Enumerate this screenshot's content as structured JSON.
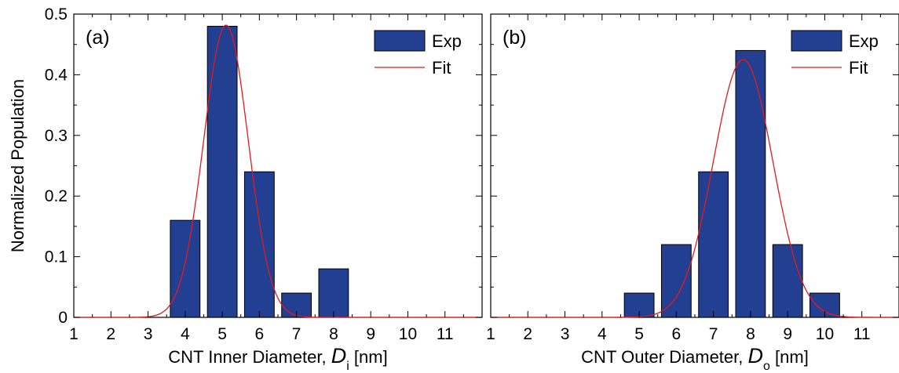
{
  "chart_data": [
    {
      "type": "bar",
      "panel_label": "(a)",
      "xlabel": "CNT Inner Diameter,",
      "xlabel_symbol": "D",
      "xlabel_subscript": "i",
      "xlabel_unit": "[nm]",
      "ylabel": "Normalized Population",
      "xlim": [
        1,
        12
      ],
      "ylim": [
        0,
        0.5
      ],
      "xticks": [
        1,
        2,
        3,
        4,
        5,
        6,
        7,
        8,
        9,
        10,
        11
      ],
      "yticks": [
        0,
        0.1,
        0.2,
        0.3,
        0.4,
        0.5
      ],
      "ytick_labels": [
        "0",
        "0.1",
        "0.2",
        "0.3",
        "0.4",
        "0.5"
      ],
      "series": [
        {
          "name": "Exp",
          "kind": "bar",
          "x": [
            4,
            5,
            6,
            7,
            8
          ],
          "values": [
            0.16,
            0.48,
            0.24,
            0.04,
            0.08
          ],
          "color": "#223f92"
        },
        {
          "name": "Fit",
          "kind": "line",
          "model": "gaussian",
          "mean": 5.1,
          "sigma": 0.6,
          "amplitude": 0.482,
          "color": "#e31b1b"
        }
      ],
      "legend": "top-right"
    },
    {
      "type": "bar",
      "panel_label": "(b)",
      "xlabel": "CNT Outer Diameter,",
      "xlabel_symbol": "D",
      "xlabel_subscript": "o",
      "xlabel_unit": "[nm]",
      "ylabel": "",
      "xlim": [
        1,
        12
      ],
      "ylim": [
        0,
        0.5
      ],
      "xticks": [
        1,
        2,
        3,
        4,
        5,
        6,
        7,
        8,
        9,
        10,
        11
      ],
      "yticks": [
        0,
        0.1,
        0.2,
        0.3,
        0.4,
        0.5
      ],
      "series": [
        {
          "name": "Exp",
          "kind": "bar",
          "x": [
            5,
            6,
            7,
            8,
            9,
            10
          ],
          "values": [
            0.04,
            0.12,
            0.24,
            0.44,
            0.12,
            0.04
          ],
          "color": "#223f92"
        },
        {
          "name": "Fit",
          "kind": "line",
          "model": "gaussian",
          "mean": 7.8,
          "sigma": 0.8,
          "amplitude": 0.425,
          "color": "#e31b1b"
        }
      ],
      "legend": "top-right"
    }
  ]
}
